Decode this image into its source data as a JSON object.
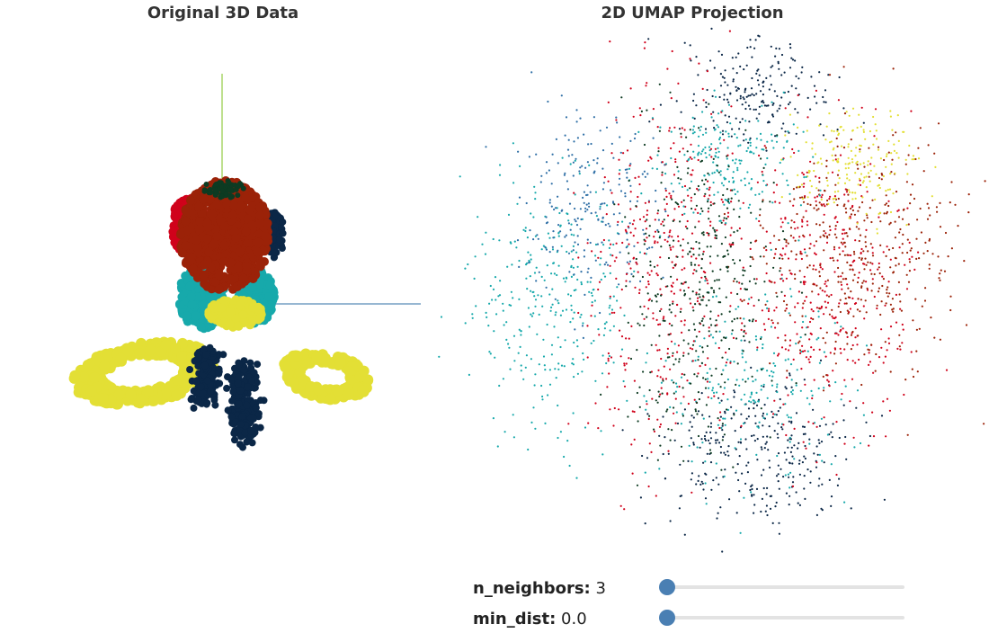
{
  "panels": {
    "left_title": "Original 3D Data",
    "right_title": "2D UMAP Projection"
  },
  "palette": {
    "dark_navy": "#0b2747",
    "dark_green": "#0d3b22",
    "red": "#d0021b",
    "brown": "#9b2208",
    "teal": "#17a9ab",
    "yellow": "#e3df35",
    "blue": "#2f6fa6",
    "axis_green": "#7cc21e",
    "axis_blue": "#2f6fa6"
  },
  "controls": {
    "n_neighbors": {
      "label": "n_neighbors:",
      "value": "3",
      "fraction": 0.0
    },
    "min_dist": {
      "label": "min_dist:",
      "value": "0.0",
      "fraction": 0.0
    }
  }
}
